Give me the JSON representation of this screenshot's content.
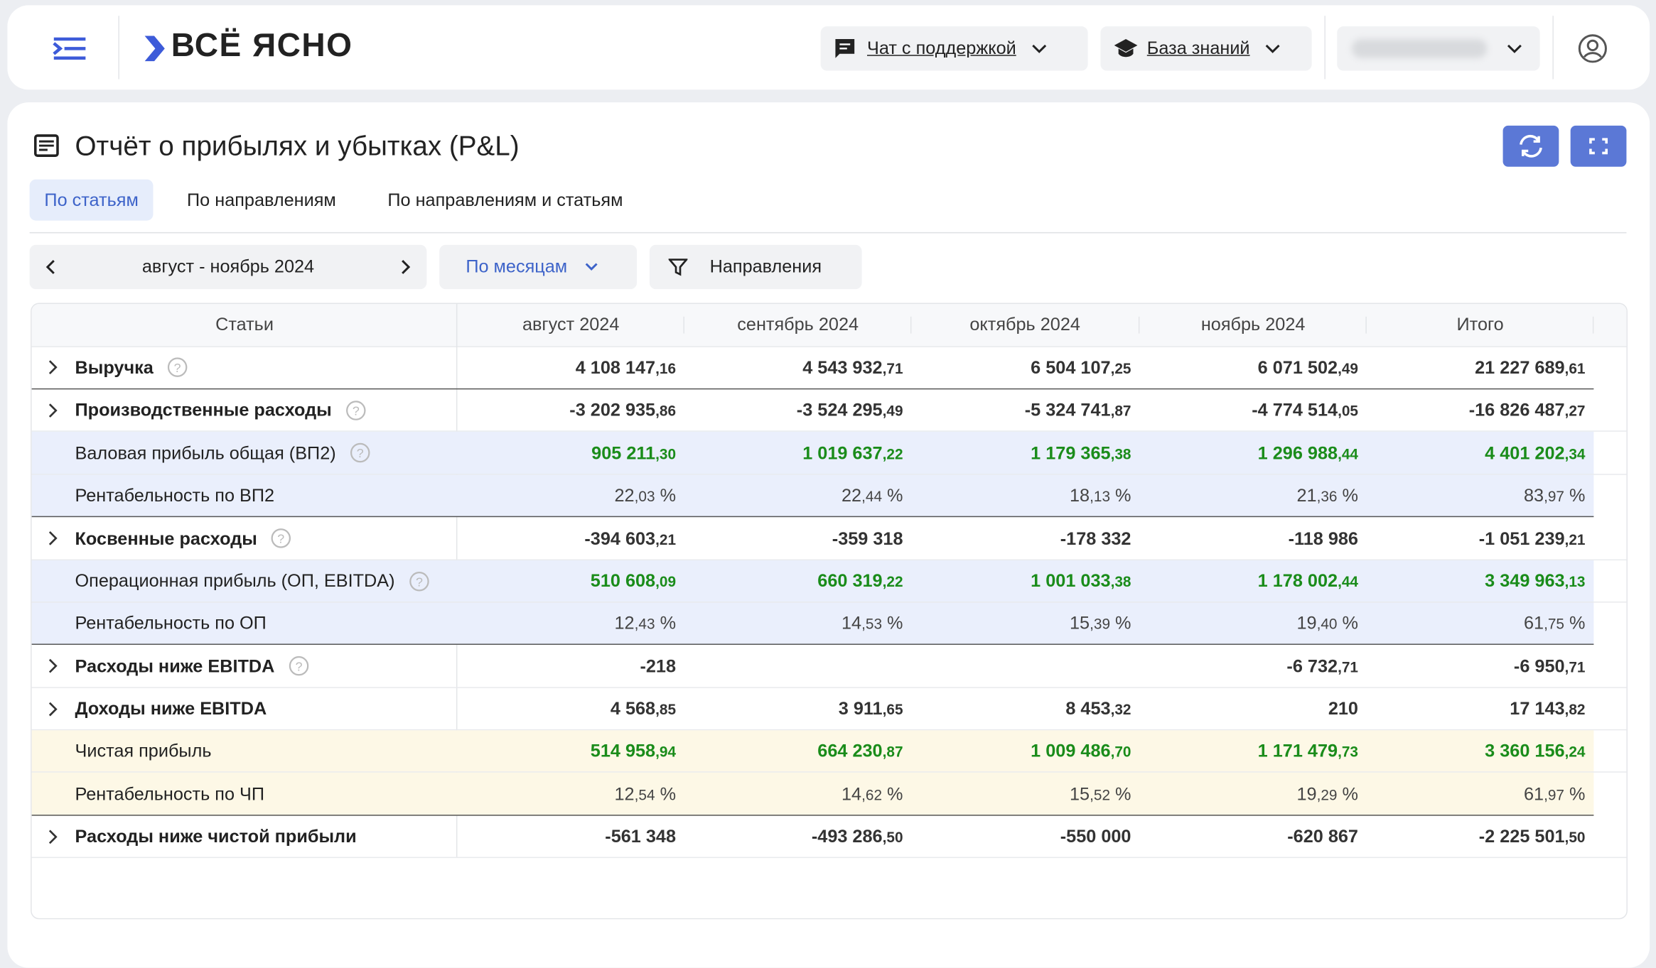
{
  "header": {
    "logo": "ВСЁ ЯСНО",
    "support": "Чат с поддержкой",
    "knowledge": "База знаний"
  },
  "page": {
    "title": "Отчёт о прибылях и убытках (P&L)",
    "tabs": [
      "По статьям",
      "По направлениям",
      "По направлениям и статьям"
    ],
    "period": "август - ноябрь 2024",
    "grouping": "По месяцам",
    "filter": "Направления"
  },
  "table": {
    "columns": [
      "Статьи",
      "август 2024",
      "сентябрь 2024",
      "октябрь 2024",
      "ноябрь 2024",
      "Итого"
    ],
    "rows": [
      {
        "label": "Выручка",
        "cells": [
          "4 108 147,16",
          "4 543 932,71",
          "6 504 107,25",
          "6 071 502,49",
          "21 227 689,61"
        ]
      },
      {
        "label": "Производственные расходы",
        "cells": [
          "-3 202 935,86",
          "-3 524 295,49",
          "-5 324 741,87",
          "-4 774 514,05",
          "-16 826 487,27"
        ]
      },
      {
        "label": "Валовая прибыль общая (ВП2)",
        "cells": [
          "905 211,30",
          "1 019 637,22",
          "1 179 365,38",
          "1 296 988,44",
          "4 401 202,34"
        ]
      },
      {
        "label": "Рентабельность по ВП2",
        "cells": [
          "22,03 %",
          "22,44 %",
          "18,13 %",
          "21,36 %",
          "83,97 %"
        ]
      },
      {
        "label": "Косвенные расходы",
        "cells": [
          "-394 603,21",
          "-359 318",
          "-178 332",
          "-118 986",
          "-1 051 239,21"
        ]
      },
      {
        "label": "Операционная прибыль (ОП, EBITDA)",
        "cells": [
          "510 608,09",
          "660 319,22",
          "1 001 033,38",
          "1 178 002,44",
          "3 349 963,13"
        ]
      },
      {
        "label": "Рентабельность по ОП",
        "cells": [
          "12,43 %",
          "14,53 %",
          "15,39 %",
          "19,40 %",
          "61,75 %"
        ]
      },
      {
        "label": "Расходы ниже EBITDA",
        "cells": [
          "-218",
          null,
          null,
          "-6 732,71",
          "-6 950,71"
        ]
      },
      {
        "label": "Доходы ниже EBITDA",
        "cells": [
          "4 568,85",
          "3 911,65",
          "8 453,32",
          "210",
          "17 143,82"
        ]
      },
      {
        "label": "Чистая прибыль",
        "cells": [
          "514 958,94",
          "664 230,87",
          "1 009 486,70",
          "1 171 479,73",
          "3 360 156,24"
        ]
      },
      {
        "label": "Рентабельность по ЧП",
        "cells": [
          "12,54 %",
          "14,62 %",
          "15,52 %",
          "19,29 %",
          "61,97 %"
        ]
      },
      {
        "label": "Расходы ниже чистой прибыли",
        "cells": [
          "-561 348",
          "-493 286,50",
          "-550 000",
          "-620 867",
          "-2 225 501,50"
        ]
      }
    ]
  }
}
